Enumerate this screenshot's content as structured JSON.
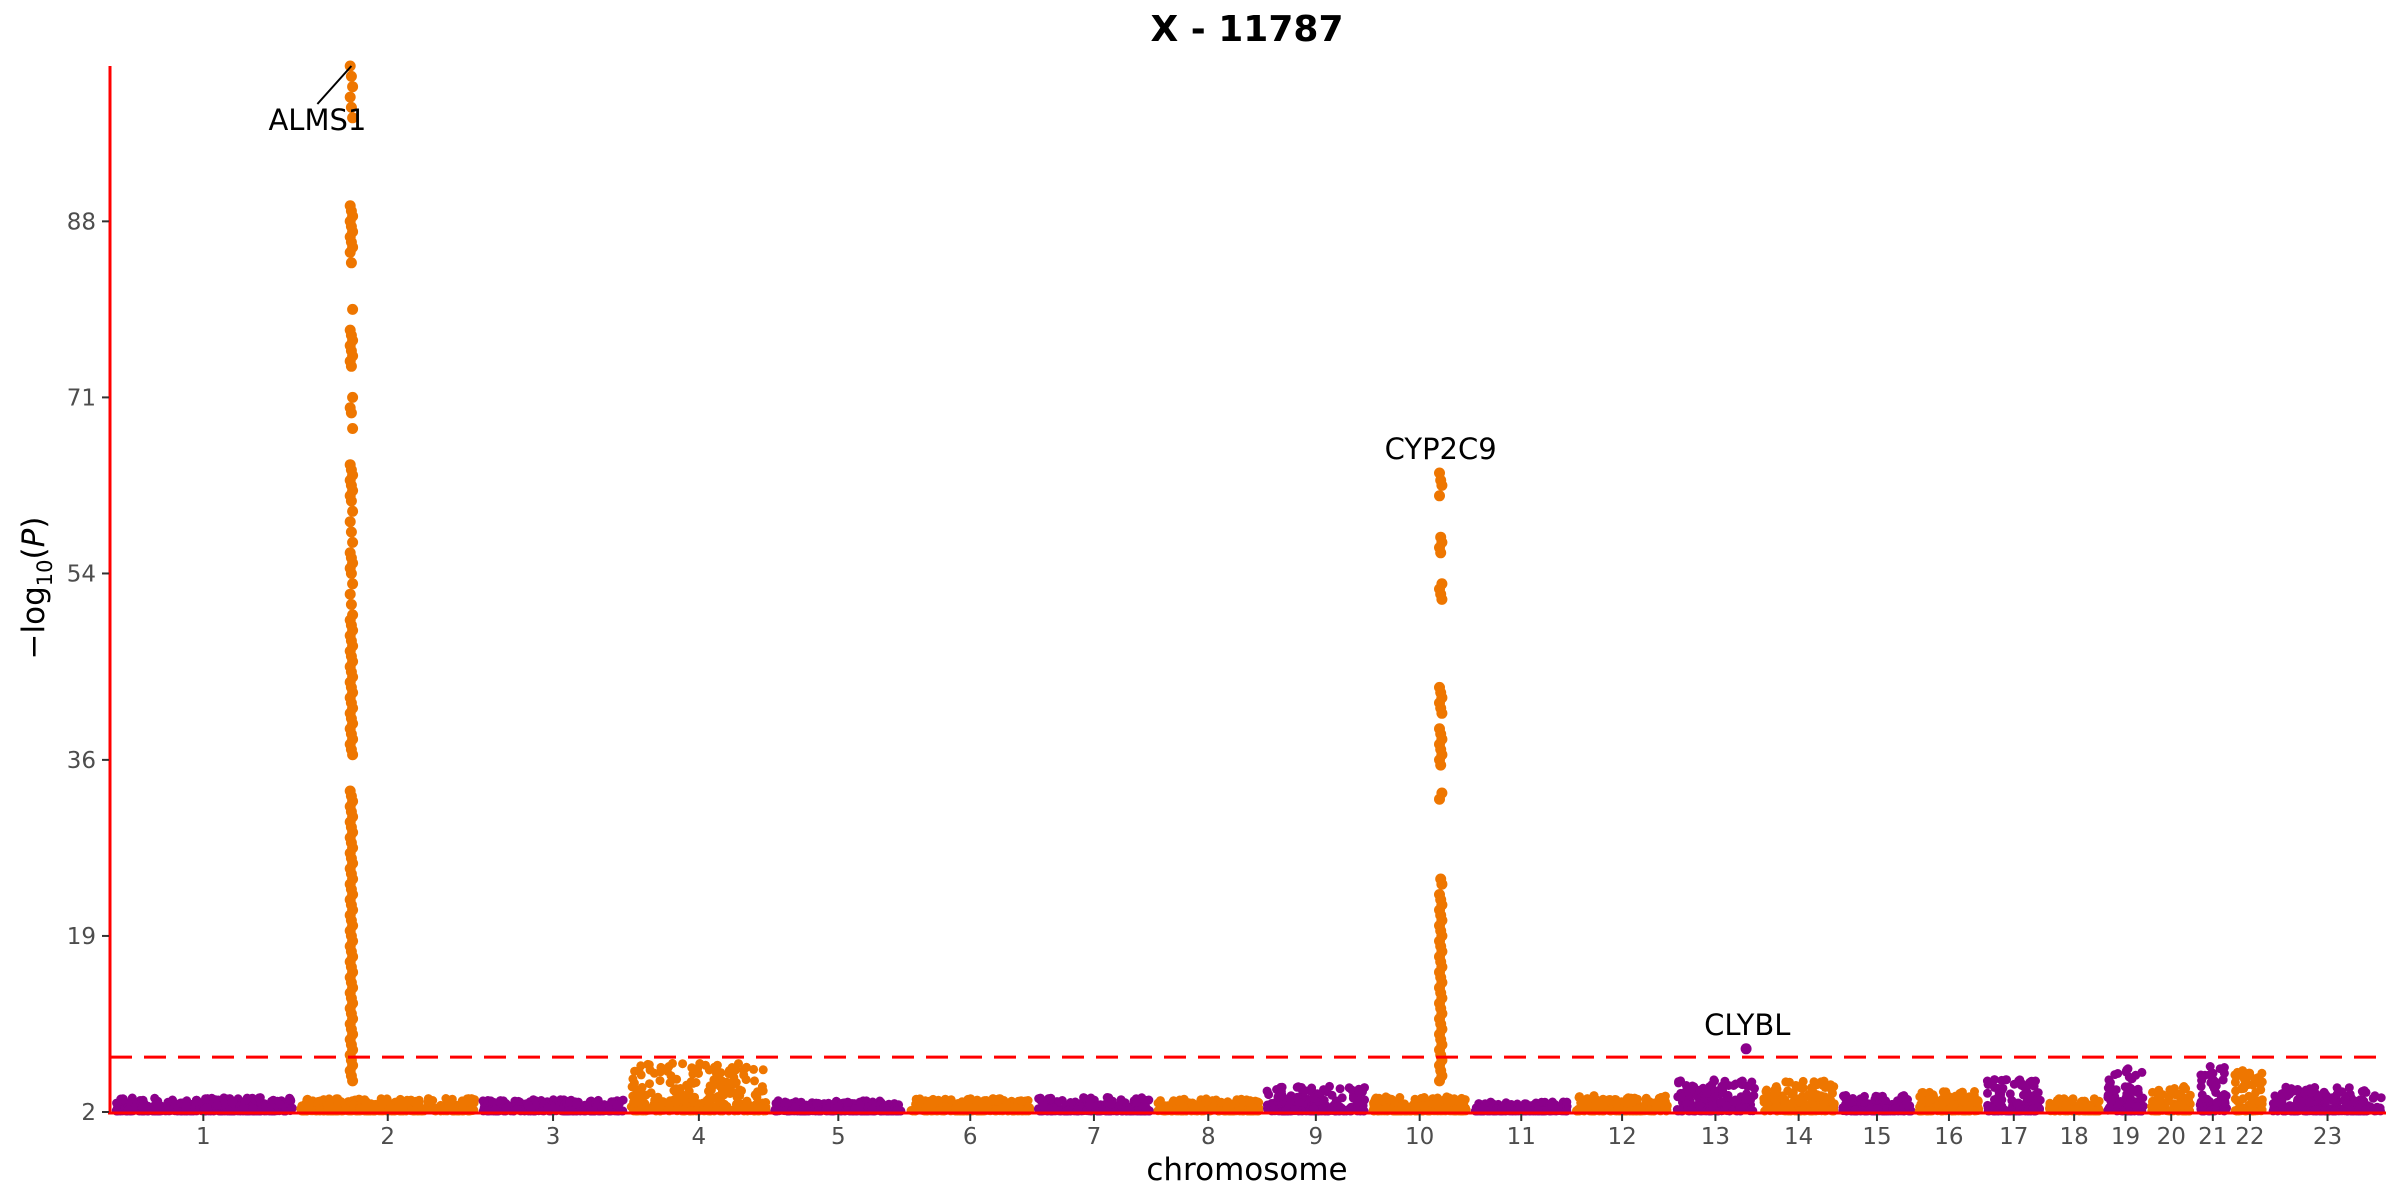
{
  "chart_data": {
    "type": "scatter",
    "subtype": "manhattan",
    "title": "X - 11787",
    "xlabel": "chromosome",
    "ylabel": "−log10(P)",
    "ylim": [
      2,
      103
    ],
    "y_ticks": [
      2,
      19,
      36,
      54,
      71,
      88
    ],
    "significance_threshold": 7.3,
    "colors": {
      "odd": "#8B008B",
      "even": "#EE7600",
      "axis": "#FF0000",
      "threshold": "#FF0000"
    },
    "grid": false,
    "chromosomes": [
      {
        "label": "1",
        "length": 249,
        "max": 3.4
      },
      {
        "label": "2",
        "length": 243,
        "max": 3.3
      },
      {
        "label": "3",
        "length": 198,
        "max": 3.2
      },
      {
        "label": "4",
        "length": 191,
        "max": 6.7
      },
      {
        "label": "5",
        "length": 181,
        "max": 3.1
      },
      {
        "label": "6",
        "length": 171,
        "max": 3.3
      },
      {
        "label": "7",
        "length": 159,
        "max": 3.4
      },
      {
        "label": "8",
        "length": 146,
        "max": 3.3
      },
      {
        "label": "9",
        "length": 141,
        "max": 4.5
      },
      {
        "label": "10",
        "length": 136,
        "max": 3.5
      },
      {
        "label": "11",
        "length": 135,
        "max": 3.0
      },
      {
        "label": "12",
        "length": 134,
        "max": 3.6
      },
      {
        "label": "13",
        "length": 115,
        "max": 5.2
      },
      {
        "label": "14",
        "length": 107,
        "max": 5.0
      },
      {
        "label": "15",
        "length": 102,
        "max": 3.6
      },
      {
        "label": "16",
        "length": 90,
        "max": 4.0
      },
      {
        "label": "17",
        "length": 83,
        "max": 5.2
      },
      {
        "label": "18",
        "length": 78,
        "max": 3.4
      },
      {
        "label": "19",
        "length": 59,
        "max": 6.2
      },
      {
        "label": "20",
        "length": 63,
        "max": 4.5
      },
      {
        "label": "21",
        "length": 48,
        "max": 6.6
      },
      {
        "label": "22",
        "length": 51,
        "max": 6.0
      },
      {
        "label": "23",
        "length": 156,
        "max": 4.4
      }
    ],
    "peaks": [
      {
        "gene": "ALMS1",
        "chr": "2",
        "pos": 73,
        "top": 103,
        "values": [
          103,
          102,
          101,
          100,
          99,
          98,
          89.5,
          89,
          88.5,
          88,
          87.5,
          87,
          86.5,
          86,
          85.5,
          85,
          84,
          79.5,
          77.5,
          77,
          76.5,
          76,
          75.5,
          75,
          74.5,
          74,
          71,
          70,
          69.5,
          68,
          64.5,
          64,
          63.5,
          63,
          62.5,
          62,
          61.5,
          61,
          60,
          59,
          58,
          57,
          56,
          55.5,
          55,
          54.5,
          54,
          53,
          52,
          51,
          50,
          49.5,
          49,
          48.5,
          48,
          47.5,
          47,
          46.5,
          46,
          45.5,
          45,
          44.5,
          44,
          43.5,
          43,
          42.5,
          42,
          41.5,
          41,
          40.5,
          40,
          39.5,
          39,
          38.5,
          38,
          37.5,
          37,
          36.5,
          33,
          32.5,
          32,
          31.5,
          31,
          30.5,
          30,
          29.5,
          29,
          28.5,
          28,
          27.5,
          27,
          26.5,
          26,
          25.5,
          25,
          24.5,
          24,
          23.5,
          23,
          22.5,
          22,
          21.5,
          21,
          20.5,
          20,
          19.5,
          19,
          18.5,
          18,
          17.5,
          17,
          16.5,
          16,
          15.5,
          15,
          14.5,
          14,
          13.5,
          13,
          12.5,
          12,
          11.5,
          11,
          10.5,
          10,
          9.5,
          9,
          8.5,
          8,
          7.5,
          7,
          6.5,
          6,
          5.5,
          5
        ]
      },
      {
        "gene": "CYP2C9",
        "chr": "10",
        "pos": 96,
        "top": 63.7,
        "values": [
          63.7,
          63,
          62.5,
          61.5,
          57.5,
          57,
          56.5,
          56,
          53,
          52.5,
          52,
          51.5,
          43,
          42.5,
          42,
          41.5,
          41,
          40.5,
          39,
          38.5,
          38,
          37.5,
          37,
          36.5,
          36,
          35.5,
          32.8,
          32.2,
          24.5,
          24,
          23,
          22.5,
          22,
          21.5,
          21,
          20.5,
          20,
          19.5,
          19,
          18.5,
          18,
          17.5,
          17,
          16.5,
          16,
          15.5,
          15,
          14.5,
          14,
          13.5,
          13,
          12.5,
          12,
          11.5,
          11,
          10.5,
          10,
          9.5,
          9,
          8.5,
          8,
          7.5,
          7,
          6.5,
          6,
          5.5,
          5
        ]
      },
      {
        "gene": "CLYBL",
        "chr": "13",
        "pos": 100,
        "top": 8.1,
        "values": [
          8.1
        ]
      }
    ]
  }
}
